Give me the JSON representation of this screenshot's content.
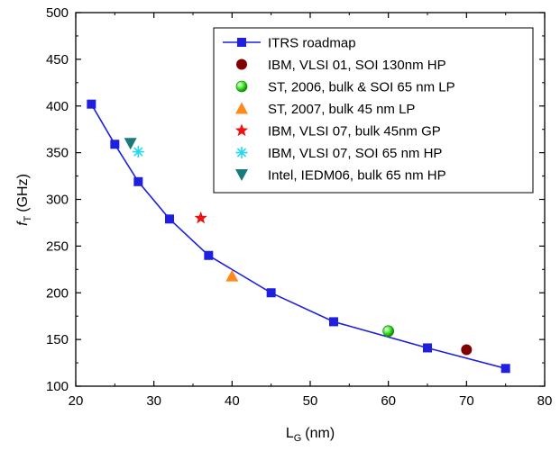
{
  "chart_data": {
    "type": "scatter",
    "xlabel": "L",
    "xlabel_sub": "G",
    "xlabel_unit": "(nm)",
    "ylabel": "f",
    "ylabel_sub": "T",
    "ylabel_unit": "(GHz)",
    "xlim": [
      20,
      80
    ],
    "ylim": [
      100,
      500
    ],
    "xticks": [
      20,
      30,
      40,
      50,
      60,
      70,
      80
    ],
    "yticks": [
      100,
      150,
      200,
      250,
      300,
      350,
      400,
      450,
      500
    ],
    "grid": false,
    "legend_position": "top-right",
    "series": [
      {
        "name": "ITRS roadmap",
        "marker": "square",
        "color": "#1f1fe0",
        "line": true,
        "x": [
          22,
          25,
          28,
          32,
          37,
          45,
          53,
          65,
          75
        ],
        "y": [
          402,
          359,
          319,
          279,
          240,
          200,
          169,
          141,
          119
        ]
      },
      {
        "name": "IBM, VLSI 01, SOI 130nm HP",
        "marker": "circle",
        "color": "#800000",
        "x": [
          70
        ],
        "y": [
          139
        ]
      },
      {
        "name": "ST, 2006, bulk & SOI 65 nm LP",
        "marker": "sphere",
        "color": "#33dd22",
        "x": [
          60
        ],
        "y": [
          159
        ]
      },
      {
        "name": "ST, 2007, bulk 45 nm LP",
        "marker": "triangle-up",
        "color": "#ff8a1c",
        "x": [
          40
        ],
        "y": [
          218
        ]
      },
      {
        "name": "IBM, VLSI 07, bulk 45nm GP",
        "marker": "star",
        "color": "#ee1111",
        "x": [
          36
        ],
        "y": [
          280
        ]
      },
      {
        "name": "IBM, VLSI 07, SOI 65 nm HP",
        "marker": "asterisk",
        "color": "#22d8f0",
        "x": [
          28
        ],
        "y": [
          351
        ]
      },
      {
        "name": "Intel, IEDM06, bulk 65 nm HP",
        "marker": "triangle-down",
        "color": "#187a7a",
        "x": [
          27
        ],
        "y": [
          360
        ]
      }
    ]
  }
}
